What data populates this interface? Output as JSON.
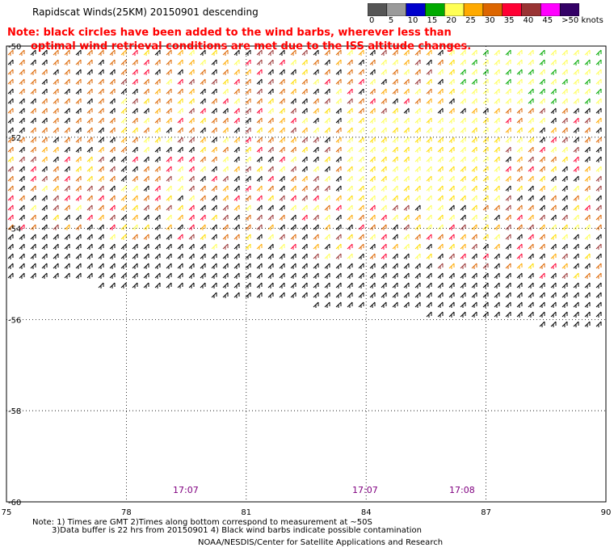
{
  "title": "Rapidscat Winds(25KM) 20150901 descending",
  "note_line1": "Note: black circles have been added to the wind barbs, wherever less than",
  "note_line2": "optimal wind retrieval conditions are met due to the ISS altitude changes.",
  "legend": {
    "labels": [
      "0",
      "5",
      "10",
      "15",
      "20",
      "25",
      "30",
      "35",
      "40",
      "45",
      ">50 knots"
    ],
    "colors": [
      "#555555",
      "#9a9a9a",
      "#0000cc",
      "#00aa00",
      "#ffff55",
      "#ffaa00",
      "#dd6600",
      "#ff0033",
      "#993333",
      "#ff00ff",
      "#330066"
    ]
  },
  "axes": {
    "lat_labels": [
      "-50",
      "-52",
      "-54",
      "-56",
      "-58",
      "-60"
    ],
    "lon_labels": [
      "75",
      "78",
      "81",
      "84",
      "87",
      "90"
    ]
  },
  "times": [
    "17:07",
    "17:07",
    "17:08"
  ],
  "footer": {
    "line1": "Note: 1) Times are GMT 2)Times along bottom correspond to measurement at ~50S",
    "line2": "3)Data buffer is 22 hrs from 20150901 4) Black wind barbs indicate possible contamination",
    "line3": "NOAA/NESDIS/Center for Satellite Applications and Research"
  }
}
